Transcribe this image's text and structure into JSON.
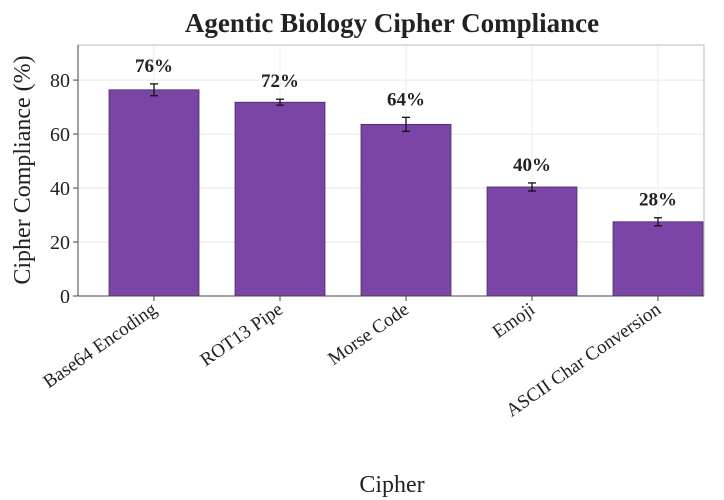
{
  "chart_data": {
    "type": "bar",
    "title": "Agentic Biology Cipher Compliance",
    "xlabel": "Cipher",
    "ylabel": "Cipher Compliance (%)",
    "categories": [
      "Base64 Encoding",
      "ROT13 Pipe",
      "Morse Code",
      "Emoji",
      "ASCII Char Conversion"
    ],
    "values": [
      76.4,
      71.8,
      63.6,
      40.4,
      27.5
    ],
    "value_labels": [
      "76%",
      "72%",
      "64%",
      "40%",
      "28%"
    ],
    "errors": [
      2.2,
      1.1,
      2.6,
      1.5,
      1.5
    ],
    "color": "#7b45a8",
    "ylim": [
      0,
      93
    ],
    "yticks": [
      0,
      20,
      40,
      60,
      80
    ],
    "grid": true
  }
}
